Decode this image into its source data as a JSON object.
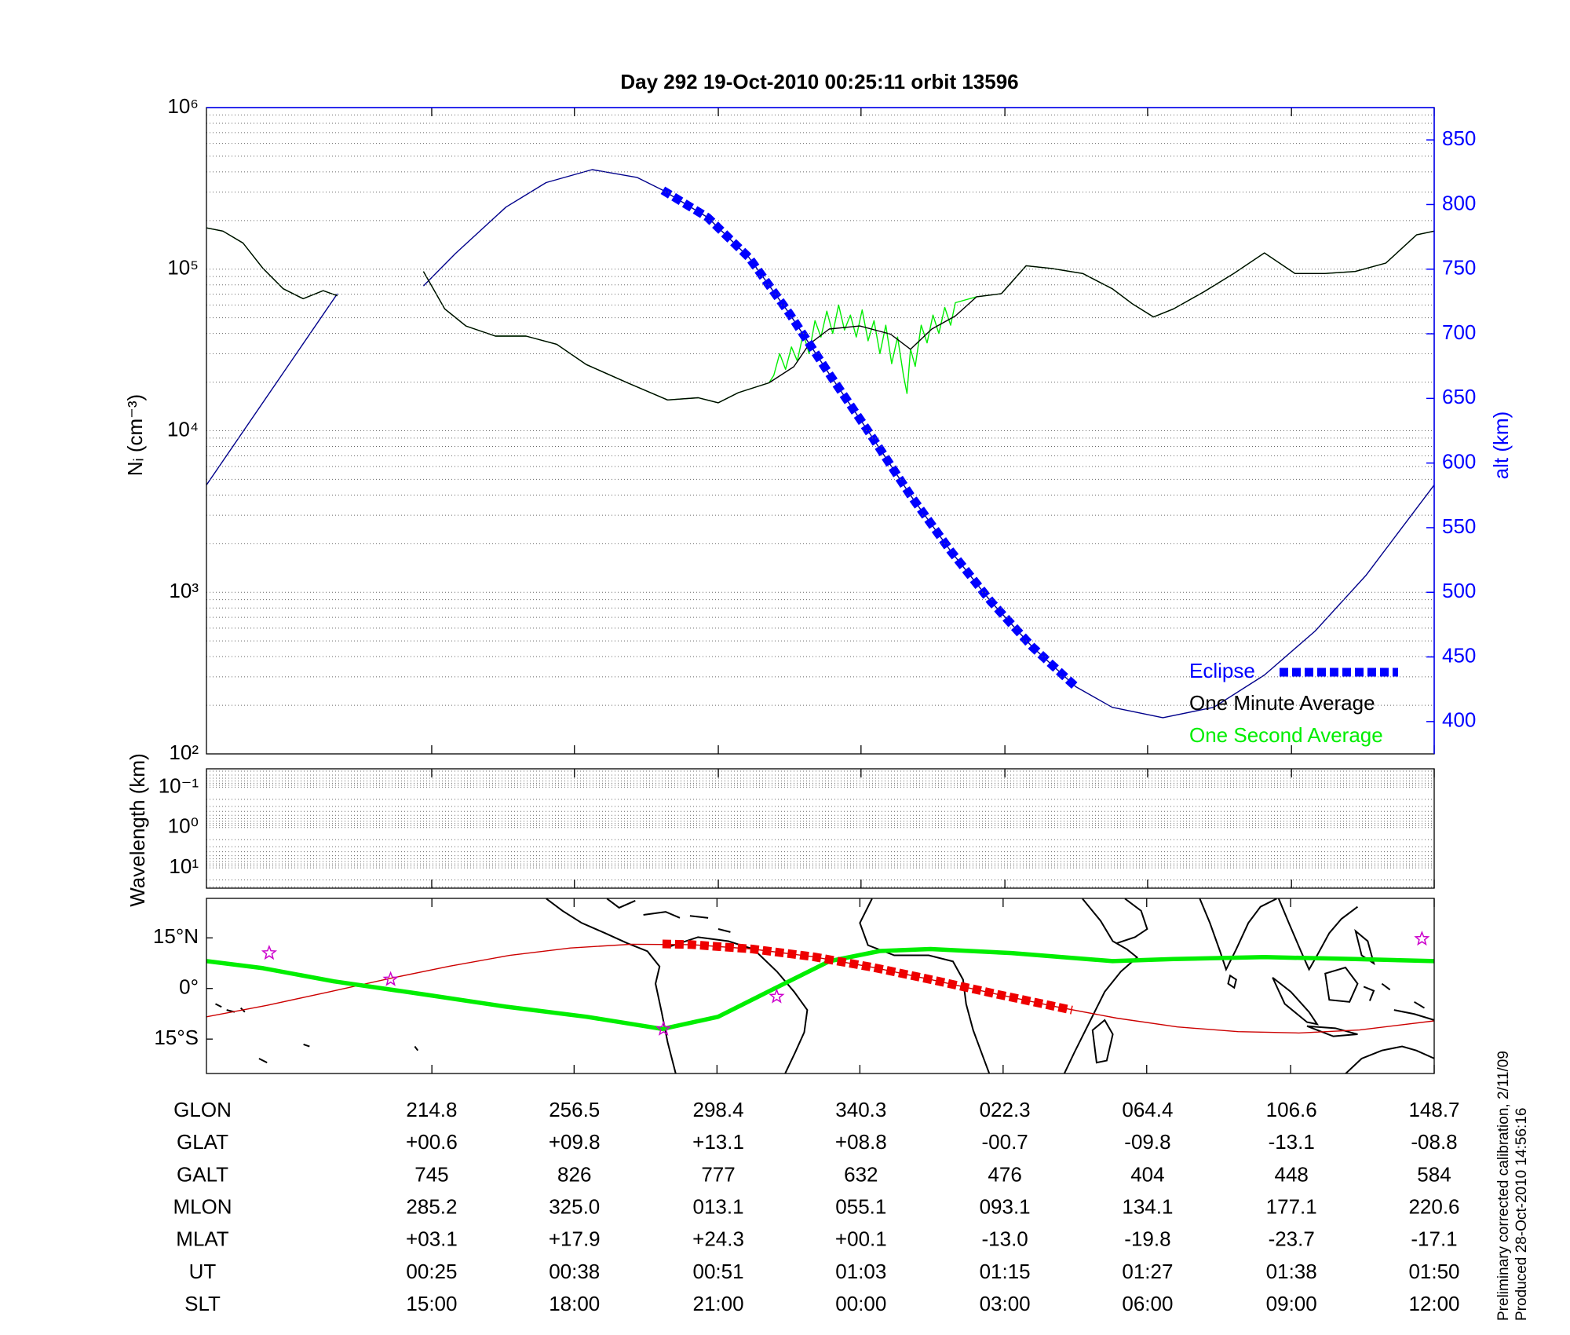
{
  "chart_data": [
    {
      "type": "line",
      "title": "Day 292  19-Oct-2010 00:25:11   orbit 13596",
      "ylabel": "Nᵢ (cm⁻³)",
      "y2label": "alt (km)",
      "y2color": "#0000ff",
      "yscale": "log",
      "grid": true,
      "legend": "lower right",
      "xlim": [
        5.9,
        110
      ],
      "xticks": [
        25,
        37.1,
        49.3,
        61.4,
        73.6,
        85.7,
        97.9,
        110
      ],
      "ylim": [
        100,
        1000000
      ],
      "yticks": [
        {
          "value": 100,
          "label": "10²"
        },
        {
          "value": 1000,
          "label": "10³"
        },
        {
          "value": 10000,
          "label": "10⁴"
        },
        {
          "value": 100000,
          "label": "10⁵"
        },
        {
          "value": 1000000,
          "label": "10⁶"
        }
      ],
      "yminorticks": [
        200,
        300,
        400,
        500,
        600,
        700,
        800,
        900,
        2000,
        3000,
        4000,
        5000,
        6000,
        7000,
        8000,
        9000,
        20000,
        30000,
        40000,
        50000,
        60000,
        70000,
        80000,
        90000,
        200000,
        300000,
        400000,
        500000,
        600000,
        700000,
        800000,
        900000
      ],
      "y2lim": [
        375,
        875
      ],
      "y2ticks": [
        400,
        450,
        500,
        550,
        600,
        650,
        700,
        750,
        800,
        850
      ],
      "series": [
        {
          "name": "Eclipse",
          "color": "#0000ff",
          "axis": "y2",
          "style": "thick-dashed",
          "x": [
            44.6,
            48.4,
            51.9,
            55.3,
            58.7,
            62.2,
            65.6,
            69.0,
            72.4,
            75.9,
            79.6
          ],
          "values": [
            811,
            790,
            759,
            716,
            669,
            622,
            575,
            532,
            493,
            458,
            427
          ]
        },
        {
          "name": "One Minute Average",
          "color": "#000000",
          "style": "thin",
          "x": [
            5.9,
            7.3,
            9.0,
            10.7,
            12.4,
            14.1,
            15.8,
            17.0,
            20.6,
            24.3,
            26.1,
            27.9,
            30.4,
            33.0,
            35.6,
            38.1,
            41.6,
            45.0,
            47.6,
            49.3,
            51.0,
            53.6,
            55.7,
            57.0,
            58.7,
            61.3,
            63.9,
            65.6,
            67.4,
            69.4,
            71.2,
            73.3,
            75.4,
            77.6,
            80.2,
            82.7,
            84.4,
            86.2,
            87.9,
            90.5,
            93.0,
            95.6,
            98.2,
            100.7,
            103.3,
            105.9,
            108.5,
            110.0
          ],
          "values": [
            180000,
            172000,
            145000,
            101000,
            75700,
            65600,
            73600,
            68500,
            null,
            96800,
            56800,
            44500,
            38500,
            38500,
            34300,
            25700,
            19800,
            15500,
            16000,
            14900,
            17200,
            19800,
            24900,
            34300,
            42600,
            44500,
            39600,
            31900,
            42600,
            51300,
            67500,
            70500,
            105000,
            101000,
            94000,
            75700,
            61100,
            50600,
            56800,
            72600,
            94000,
            126000,
            94000,
            94000,
            96800,
            109000,
            163000,
            172000
          ]
        },
        {
          "name": "One Second Average",
          "color": "#00ee00",
          "style": "thin",
          "x": [
            5.9,
            7.3,
            9.0,
            10.7,
            12.4,
            14.1,
            15.8,
            17.0,
            20.6,
            24.3,
            26.1,
            27.9,
            30.4,
            33.0,
            35.6,
            38.1,
            41.6,
            45.0,
            47.6,
            49.3,
            51.0,
            53.6,
            54.0,
            54.5,
            55.0,
            55.5,
            56.0,
            56.5,
            57.0,
            57.5,
            58.0,
            58.5,
            59.0,
            59.5,
            60.0,
            60.5,
            61.0,
            61.5,
            62.0,
            62.5,
            63.0,
            63.5,
            64.0,
            64.5,
            65.0,
            65.3,
            65.6,
            66.0,
            66.5,
            67.0,
            67.5,
            68.0,
            68.5,
            69.0,
            69.4,
            71.2,
            73.3,
            75.4,
            77.6,
            80.2,
            82.7,
            84.4,
            86.2,
            87.9,
            90.5,
            93.0,
            95.6,
            98.2,
            100.7,
            103.3,
            105.9,
            108.5,
            110.0
          ],
          "values": [
            180000,
            172000,
            145000,
            101000,
            75700,
            65600,
            73600,
            68500,
            null,
            96800,
            56800,
            44500,
            38500,
            38500,
            34300,
            25700,
            19800,
            15500,
            16000,
            14900,
            17200,
            19800,
            22000,
            30000,
            24000,
            33000,
            27000,
            40000,
            30000,
            48000,
            38000,
            55000,
            40000,
            60000,
            42000,
            52000,
            38000,
            56000,
            36000,
            48000,
            30000,
            45000,
            26000,
            38000,
            22000,
            17000,
            32000,
            25000,
            45000,
            35000,
            52000,
            40000,
            58000,
            45000,
            62000,
            67500,
            70500,
            105000,
            101000,
            94000,
            75700,
            61100,
            50600,
            56800,
            72600,
            94000,
            126000,
            94000,
            94000,
            96800,
            109000,
            163000,
            172000
          ]
        },
        {
          "color": "#00008b",
          "axis": "y2",
          "style": "thin",
          "x": [
            5.9,
            17.0,
            20.6,
            24.3,
            27.0,
            31.3,
            34.7,
            38.6,
            42.4,
            44.6,
            48.4,
            51.9,
            55.3,
            58.7,
            62.2,
            65.6,
            69.0,
            72.4,
            75.9,
            79.6,
            82.7,
            87.0,
            91.3,
            95.6,
            99.9,
            104.2,
            110.0
          ],
          "values": [
            583,
            731,
            null,
            737,
            762,
            798,
            817,
            827,
            821,
            811,
            790,
            759,
            716,
            669,
            622,
            575,
            532,
            493,
            458,
            427,
            411,
            403,
            411,
            436,
            470,
            513,
            583
          ]
        }
      ]
    },
    {
      "type": "line",
      "ylabel": "Wavelength (km)",
      "yscale": "log",
      "yreverse": true,
      "grid": true,
      "xlim": [
        5.9,
        110
      ],
      "xticks": [
        25,
        37.1,
        49.3,
        61.4,
        73.6,
        85.7,
        97.9,
        110
      ],
      "ylim": [
        0.035,
        32
      ],
      "yticks": [
        {
          "value": 0.1,
          "label": "10⁻¹"
        },
        {
          "value": 1,
          "label": "10⁰"
        },
        {
          "value": 10,
          "label": "10¹"
        }
      ],
      "yminorticks": [
        0.04,
        0.05,
        0.06,
        0.07,
        0.08,
        0.09,
        0.2,
        0.3,
        0.4,
        0.5,
        0.6,
        0.7,
        0.8,
        0.9,
        2,
        3,
        4,
        5,
        6,
        7,
        8,
        9,
        20,
        30
      ],
      "series": []
    },
    {
      "type": "map",
      "grid": false,
      "xlim": [
        148.7,
        508.7
      ],
      "xticks": [
        214.8,
        256.5,
        298.4,
        340.3,
        382.3,
        424.4,
        466.6,
        508.7
      ],
      "ylim": [
        -25.2,
        26.7
      ],
      "yticks": [
        {
          "value": 15,
          "label": "15°N"
        },
        {
          "value": 0,
          "label": "0°"
        },
        {
          "value": -15,
          "label": "15°S"
        }
      ],
      "series": [
        {
          "color": "#cc0000",
          "style": "thin",
          "x": [
            148.7,
            166.5,
            184.3,
            202.1,
            219.9,
            237.6,
            255.4,
            273.2,
            291.0,
            308.8,
            326.6,
            344.4,
            362.2,
            380.0,
            397.8,
            415.6,
            433.4,
            451.2,
            469.0,
            486.8,
            508.7
          ],
          "values": [
            -8.4,
            -5.0,
            -1.1,
            2.9,
            6.6,
            9.8,
            12.0,
            13.1,
            13.0,
            11.7,
            9.4,
            6.2,
            2.4,
            -1.6,
            -5.4,
            -8.8,
            -11.4,
            -12.8,
            -13.2,
            -12.3,
            -9.6
          ]
        },
        {
          "color": "#00ee00",
          "style": "thick",
          "x": [
            148.7,
            165.3,
            186.1,
            212.8,
            236.5,
            260.2,
            282.4,
            298.7,
            313.5,
            331.4,
            346.2,
            361.0,
            384.7,
            414.4,
            432.2,
            458.9,
            485.6,
            508.7
          ],
          "values": [
            8.1,
            6.0,
            2.1,
            -1.8,
            -5.4,
            -8.4,
            -12.0,
            -8.4,
            -0.9,
            8.1,
            11.1,
            11.7,
            10.5,
            8.1,
            8.7,
            9.3,
            8.7,
            8.1
          ]
        },
        {
          "color": "#ee0000",
          "style": "thick-dashed",
          "x": [
            282.4,
            291.0,
            308.8,
            326.6,
            344.4,
            362.2,
            380.0,
            397.8,
            402.5
          ],
          "values": [
            13.2,
            13.0,
            11.7,
            9.4,
            6.2,
            2.4,
            -1.6,
            -5.4,
            -6.4
          ]
        },
        {
          "color": "#cc00cc",
          "marker": "star",
          "x": [
            167.1,
            202.7,
            282.7,
            315.9,
            505.1
          ],
          "values": [
            10.5,
            2.7,
            -12.0,
            -2.4,
            14.7
          ]
        }
      ]
    }
  ],
  "table": {
    "rows": [
      {
        "label": "GLON",
        "values": [
          "214.8",
          "256.5",
          "298.4",
          "340.3",
          "022.3",
          "064.4",
          "106.6",
          "148.7"
        ]
      },
      {
        "label": "GLAT",
        "values": [
          "+00.6",
          "+09.8",
          "+13.1",
          "+08.8",
          "-00.7",
          "-09.8",
          "-13.1",
          "-08.8"
        ]
      },
      {
        "label": "GALT",
        "values": [
          "745",
          "826",
          "777",
          "632",
          "476",
          "404",
          "448",
          "584"
        ]
      },
      {
        "label": "MLON",
        "values": [
          "285.2",
          "325.0",
          "013.1",
          "055.1",
          "093.1",
          "134.1",
          "177.1",
          "220.6"
        ]
      },
      {
        "label": "MLAT",
        "values": [
          "+03.1",
          "+17.9",
          "+24.3",
          "+00.1",
          "-13.0",
          "-19.8",
          "-23.7",
          "-17.1"
        ]
      },
      {
        "label": "UT",
        "values": [
          "00:25",
          "00:38",
          "00:51",
          "01:03",
          "01:15",
          "01:27",
          "01:38",
          "01:50"
        ]
      },
      {
        "label": "SLT",
        "values": [
          "15:00",
          "18:00",
          "21:00",
          "00:00",
          "03:00",
          "06:00",
          "09:00",
          "12:00"
        ]
      }
    ]
  },
  "notes": [
    "Preliminary corrected calibration, 2/11/09",
    "Produced 28-Oct-2010 14:56:16"
  ]
}
